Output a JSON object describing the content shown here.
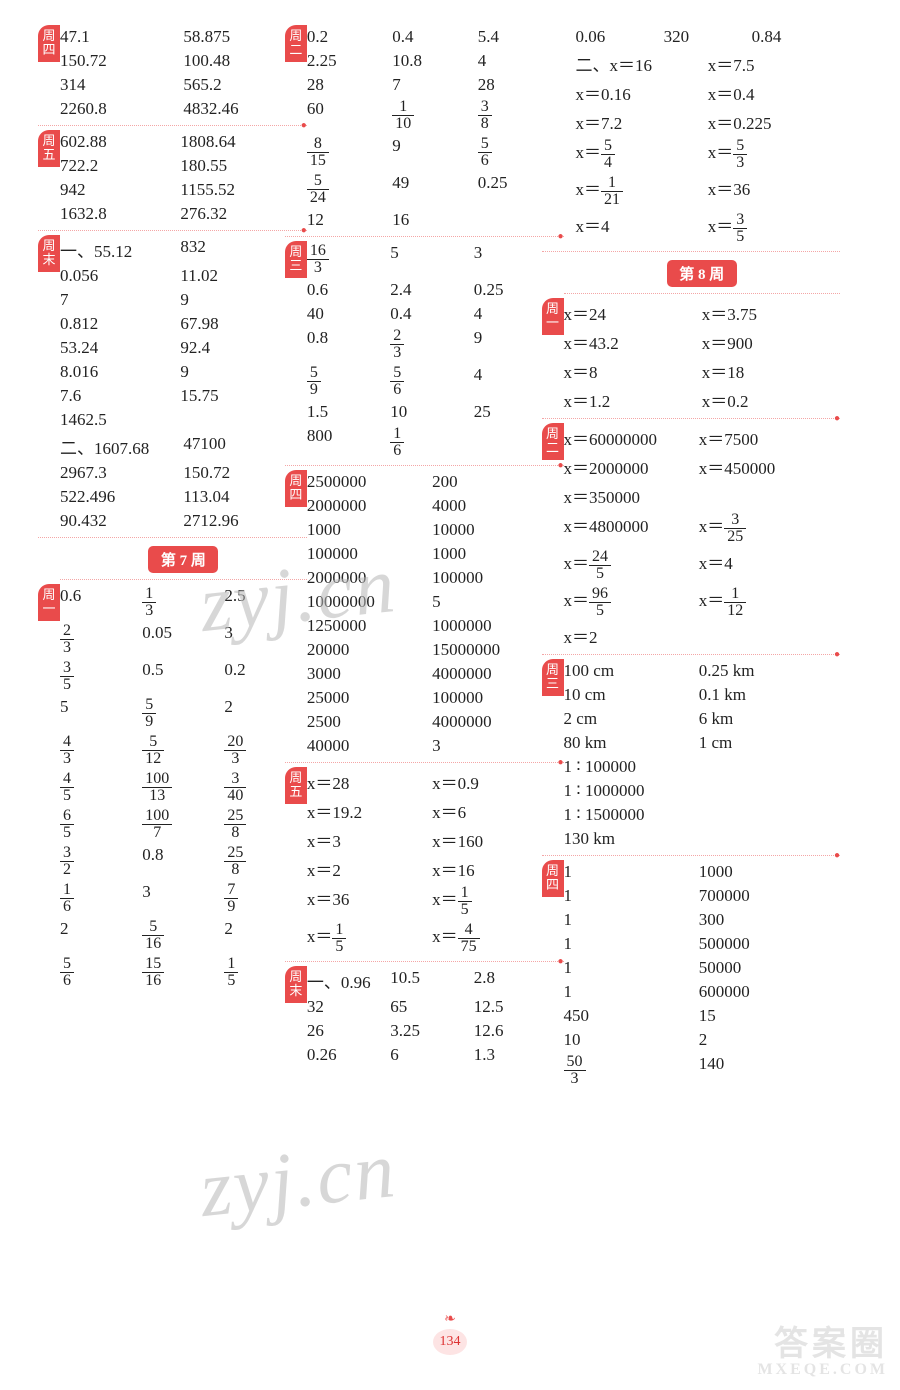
{
  "page_number": "134",
  "watermarks": {
    "main": "zyj.cn",
    "footer_big": "答案圈",
    "footer_small": "MXEQE.COM"
  },
  "week7_label": "第 7 周",
  "week8_label": "第 8 周",
  "col1": {
    "b4": {
      "tab": "周四",
      "cells": [
        "47.1",
        "58.875",
        "150.72",
        "100.48",
        "314",
        "565.2",
        "2260.8",
        "4832.46"
      ]
    },
    "b5": {
      "tab": "周五",
      "cells": [
        "602.88",
        "1808.64",
        "722.2",
        "180.55",
        "942",
        "1155.52",
        "1632.8",
        "276.32"
      ]
    },
    "bmo": {
      "tab": "周末",
      "s1label": "一、",
      "s1": [
        "55.12",
        "832",
        "0.056",
        "11.02",
        "7",
        "9",
        "0.812",
        "67.98",
        "53.24",
        "92.4",
        "8.016",
        "9",
        "7.6",
        "15.75",
        "1462.5",
        ""
      ],
      "s2label": "二、",
      "s2": [
        "1607.68",
        "47100",
        "2967.3",
        "150.72",
        "522.496",
        "113.04",
        "90.432",
        "2712.96"
      ]
    },
    "w7_1": {
      "tab": "周一",
      "rows": [
        [
          "0.6",
          "1/3",
          "2.5"
        ],
        [
          "2/3",
          "0.05",
          "3"
        ],
        [
          "3/5",
          "0.5",
          "0.2"
        ],
        [
          "5",
          "5/9",
          "2"
        ],
        [
          "4/3",
          "5/12",
          "20/3"
        ],
        [
          "4/5",
          "100/13",
          "3/40"
        ],
        [
          "6/5",
          "100/7",
          "25/8"
        ],
        [
          "3/2",
          "0.8",
          "25/8"
        ],
        [
          "1/6",
          "3",
          "7/9"
        ],
        [
          "2",
          "5/16",
          "2"
        ],
        [
          "5/6",
          "15/16",
          "1/5"
        ]
      ]
    }
  },
  "col2": {
    "b2": {
      "tab": "周二",
      "rows": [
        [
          "0.2",
          "0.4",
          "5.4"
        ],
        [
          "2.25",
          "10.8",
          "4"
        ],
        [
          "28",
          "7",
          "28"
        ],
        [
          "60",
          "1/10",
          "3/8"
        ],
        [
          "8/15",
          "9",
          "5/6"
        ],
        [
          "5/24",
          "49",
          "0.25"
        ],
        [
          "12",
          "16",
          ""
        ]
      ]
    },
    "b3": {
      "tab": "周三",
      "rows": [
        [
          "16/3",
          "5",
          "3"
        ],
        [
          "0.6",
          "2.4",
          "0.25"
        ],
        [
          "40",
          "0.4",
          "4"
        ],
        [
          "0.8",
          "2/3",
          "9"
        ],
        [
          "5/9",
          "5/6",
          "4"
        ],
        [
          "1.5",
          "10",
          "25"
        ],
        [
          "800",
          "1/6",
          ""
        ]
      ]
    },
    "b4": {
      "tab": "周四",
      "rows": [
        [
          "2500000",
          "200"
        ],
        [
          "2000000",
          "4000"
        ],
        [
          "1000",
          "10000"
        ],
        [
          "100000",
          "1000"
        ],
        [
          "2000000",
          "100000"
        ],
        [
          "10000000",
          "5"
        ],
        [
          "1250000",
          "1000000"
        ],
        [
          "20000",
          "15000000"
        ],
        [
          "3000",
          "4000000"
        ],
        [
          "25000",
          "100000"
        ],
        [
          "2500",
          "4000000"
        ],
        [
          "40000",
          "3"
        ]
      ]
    },
    "b5": {
      "tab": "周五",
      "rows": [
        [
          "x＝28",
          "x＝0.9"
        ],
        [
          "x＝19.2",
          "x＝6"
        ],
        [
          "x＝3",
          "x＝160"
        ],
        [
          "x＝2",
          "x＝16"
        ],
        [
          "x＝36",
          "x＝1/5"
        ],
        [
          "x＝1/5",
          "x＝4/75"
        ]
      ]
    },
    "bmo": {
      "tab": "周末",
      "s1label": "一、",
      "rows": [
        [
          "0.96",
          "10.5",
          "2.8"
        ],
        [
          "32",
          "65",
          "12.5"
        ],
        [
          "26",
          "3.25",
          "12.6"
        ],
        [
          "0.26",
          "6",
          "1.3"
        ]
      ]
    }
  },
  "col3": {
    "top": {
      "line1": [
        "0.06",
        "320",
        "0.84"
      ],
      "s2label": "二、",
      "rows": [
        [
          "x＝16",
          "x＝7.5"
        ],
        [
          "x＝0.16",
          "x＝0.4"
        ],
        [
          "x＝7.2",
          "x＝0.225"
        ],
        [
          "x＝5/4",
          "x＝5/3"
        ],
        [
          "x＝1/21",
          "x＝36"
        ],
        [
          "x＝4",
          "x＝3/5"
        ]
      ]
    },
    "w8_1": {
      "tab": "周一",
      "rows": [
        [
          "x＝24",
          "x＝3.75"
        ],
        [
          "x＝43.2",
          "x＝900"
        ],
        [
          "x＝8",
          "x＝18"
        ],
        [
          "x＝1.2",
          "x＝0.2"
        ]
      ]
    },
    "w8_2": {
      "tab": "周二",
      "rows": [
        [
          "x＝60000000",
          "x＝7500"
        ],
        [
          "x＝2000000",
          "x＝450000"
        ],
        [
          "x＝350000",
          ""
        ],
        [
          "x＝4800000",
          "x＝3/25"
        ],
        [
          "x＝24/5",
          "x＝4"
        ],
        [
          "x＝96/5",
          "x＝1/12"
        ],
        [
          "x＝2",
          ""
        ]
      ]
    },
    "w8_3": {
      "tab": "周三",
      "rows": [
        [
          "100 cm",
          "0.25 km"
        ],
        [
          "10 cm",
          "0.1 km"
        ],
        [
          "2 cm",
          "6 km"
        ],
        [
          "80 km",
          "1 cm"
        ],
        [
          "1 ∶ 100000",
          ""
        ],
        [
          "1 ∶ 1000000",
          ""
        ],
        [
          "1 ∶ 1500000",
          ""
        ],
        [
          "130 km",
          ""
        ]
      ]
    },
    "w8_4": {
      "tab": "周四",
      "rows": [
        [
          "1",
          "1000"
        ],
        [
          "1",
          "700000"
        ],
        [
          "1",
          "300"
        ],
        [
          "1",
          "500000"
        ],
        [
          "1",
          "50000"
        ],
        [
          "1",
          "600000"
        ],
        [
          "450",
          "15"
        ],
        [
          "10",
          "2"
        ],
        [
          "50/3",
          "140"
        ]
      ]
    }
  }
}
